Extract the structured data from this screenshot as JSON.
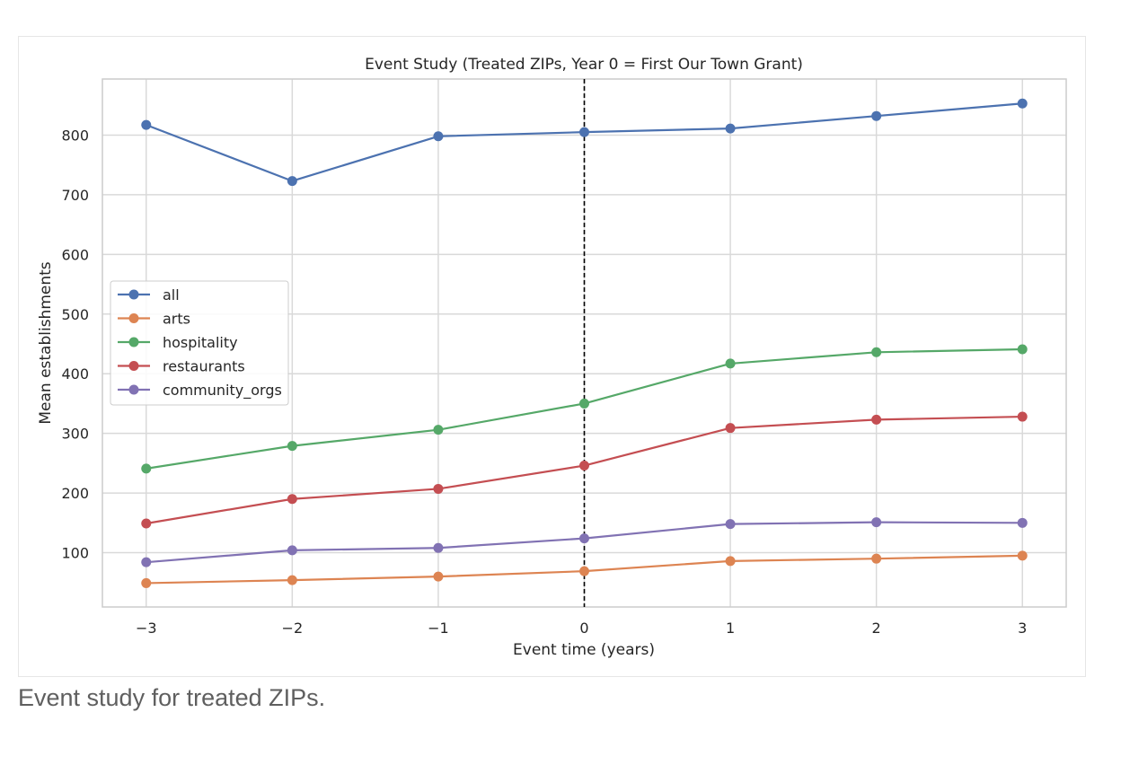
{
  "caption": "Event study for treated ZIPs.",
  "chart_data": {
    "type": "line",
    "title": "Event Study (Treated ZIPs, Year 0 = First Our Town Grant)",
    "xlabel": "Event time (years)",
    "ylabel": "Mean establishments",
    "x": [
      -3,
      -2,
      -1,
      0,
      1,
      2,
      3
    ],
    "x_tick_labels": [
      "−3",
      "−2",
      "−1",
      "0",
      "1",
      "2",
      "3"
    ],
    "xlim": [
      -3.3,
      3.3
    ],
    "ylim": [
      9,
      894
    ],
    "y_ticks": [
      100,
      200,
      300,
      400,
      500,
      600,
      700,
      800
    ],
    "y_tick_labels": [
      "100",
      "200",
      "300",
      "400",
      "500",
      "600",
      "700",
      "800"
    ],
    "grid": true,
    "legend_position": "center-left",
    "vline": {
      "x": 0,
      "style": "dashed",
      "color": "#000000"
    },
    "series": [
      {
        "name": "all",
        "color": "#4c72b0",
        "values": [
          817,
          723,
          798,
          805,
          811,
          832,
          853
        ]
      },
      {
        "name": "arts",
        "color": "#dd8452",
        "values": [
          49,
          54,
          60,
          69,
          86,
          90,
          95
        ]
      },
      {
        "name": "hospitality",
        "color": "#55a868",
        "values": [
          241,
          279,
          306,
          350,
          417,
          436,
          441
        ]
      },
      {
        "name": "restaurants",
        "color": "#c44e52",
        "values": [
          149,
          190,
          207,
          246,
          309,
          323,
          328
        ]
      },
      {
        "name": "community_orgs",
        "color": "#8172b3",
        "values": [
          84,
          104,
          108,
          124,
          148,
          151,
          150
        ]
      }
    ]
  }
}
